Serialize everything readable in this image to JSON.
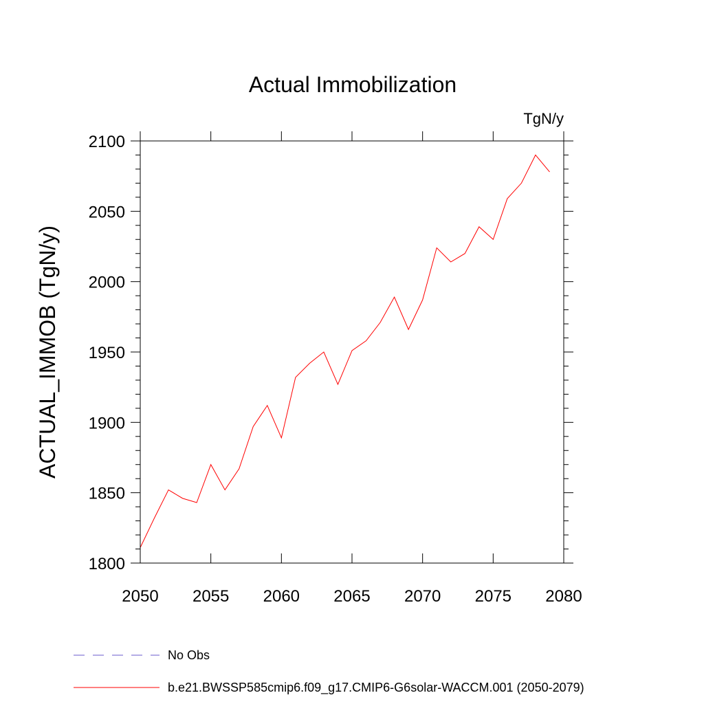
{
  "chart_data": {
    "type": "line",
    "title": "Actual Immobilization",
    "units": "TgN/y",
    "xlabel": "",
    "ylabel": "ACTUAL_IMMOB  (TgN/y)",
    "xlim": [
      2050,
      2080
    ],
    "ylim": [
      1800,
      2100
    ],
    "x_ticks": [
      2050,
      2055,
      2060,
      2065,
      2070,
      2075,
      2080
    ],
    "y_ticks": [
      1800,
      1850,
      1900,
      1950,
      2000,
      2050,
      2100
    ],
    "grid": false,
    "legend_placement": "bottom",
    "series": [
      {
        "name": "No Obs",
        "color": "#6a5acd",
        "dash": "dashed",
        "x": [],
        "values": []
      },
      {
        "name": "b.e21.BWSSP585cmip6.f09_g17.CMIP6-G6solar-WACCM.001 (2050-2079)",
        "color": "#ff0000",
        "dash": "solid",
        "x": [
          2050,
          2051,
          2052,
          2053,
          2054,
          2055,
          2056,
          2057,
          2058,
          2059,
          2060,
          2061,
          2062,
          2063,
          2064,
          2065,
          2066,
          2067,
          2068,
          2069,
          2070,
          2071,
          2072,
          2073,
          2074,
          2075,
          2076,
          2077,
          2078,
          2079
        ],
        "values": [
          1811,
          1832,
          1852,
          1846,
          1843,
          1870,
          1852,
          1867,
          1897,
          1912,
          1889,
          1932,
          1942,
          1950,
          1927,
          1951,
          1958,
          1971,
          1989,
          1966,
          1987,
          2024,
          2014,
          2020,
          2039,
          2030,
          2059,
          2070,
          2090,
          2078
        ]
      }
    ]
  }
}
